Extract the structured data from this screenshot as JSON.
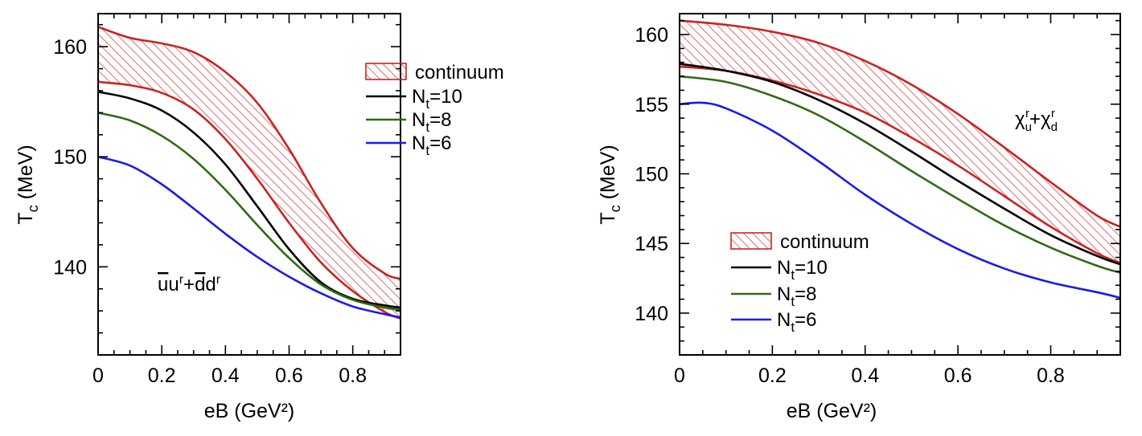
{
  "chart_data": [
    {
      "type": "line",
      "id": "left",
      "xlabel": "eB (GeV²)",
      "ylabel": "T_c (MeV)",
      "ylabel_main": "T",
      "ylabel_sub": "c",
      "ylabel_unit": "(MeV)",
      "xlim": [
        0,
        0.95
      ],
      "ylim": [
        132,
        163
      ],
      "xticks": [
        0,
        0.2,
        0.4,
        0.6,
        0.8
      ],
      "xtick_labels": [
        "0",
        "0.2",
        "0.4",
        "0.6",
        "0.8"
      ],
      "yticks": [
        140,
        150,
        160
      ],
      "ytick_labels": [
        "140",
        "150",
        "160"
      ],
      "annotation": "ūu^r + d̄d^r",
      "annotation_parts": {
        "bar1": "u",
        "mid1": "u",
        "sup1": "r",
        "plus": "+",
        "bar2": "d",
        "mid2": "d",
        "sup2": "r"
      },
      "band": {
        "name": "continuum",
        "color": "#cc2222",
        "x": [
          0,
          0.1,
          0.2,
          0.3,
          0.4,
          0.5,
          0.6,
          0.7,
          0.8,
          0.9,
          0.95
        ],
        "upper": [
          161.8,
          160.8,
          160.3,
          159.5,
          157.7,
          154.9,
          150.7,
          145.8,
          141.7,
          139.4,
          138.9
        ],
        "lower": [
          156.8,
          156.5,
          155.8,
          154.3,
          151.6,
          148.0,
          144.0,
          140.4,
          137.8,
          135.9,
          135.3
        ]
      },
      "series": [
        {
          "name": "N_t=10",
          "label_main": "N",
          "label_sub": "t",
          "label_tail": "=10",
          "color": "#000000",
          "x": [
            0,
            0.1,
            0.2,
            0.3,
            0.4,
            0.5,
            0.6,
            0.7,
            0.8,
            0.9,
            0.95
          ],
          "y": [
            155.9,
            155.3,
            154.2,
            152.2,
            149.3,
            145.5,
            141.6,
            138.6,
            137.1,
            136.5,
            136.3
          ]
        },
        {
          "name": "N_t=8",
          "label_main": "N",
          "label_sub": "t",
          "label_tail": "=8",
          "color": "#2e6b12",
          "x": [
            0,
            0.1,
            0.2,
            0.3,
            0.4,
            0.5,
            0.6,
            0.7,
            0.8,
            0.9,
            0.95
          ],
          "y": [
            154.0,
            153.3,
            151.9,
            149.8,
            147.0,
            143.8,
            140.8,
            138.4,
            137.0,
            136.3,
            136.1
          ]
        },
        {
          "name": "N_t=6",
          "label_main": "N",
          "label_sub": "t",
          "label_tail": "=6",
          "color": "#1a1aee",
          "x": [
            0,
            0.1,
            0.2,
            0.3,
            0.4,
            0.5,
            0.6,
            0.7,
            0.8,
            0.9,
            0.95
          ],
          "y": [
            150.0,
            149.2,
            147.5,
            145.3,
            143.0,
            140.9,
            139.1,
            137.6,
            136.4,
            135.7,
            135.4
          ]
        }
      ],
      "legend_position": "top-right",
      "legend_entries": [
        "continuum",
        "N_t=10",
        "N_t=8",
        "N_t=6"
      ]
    },
    {
      "type": "line",
      "id": "right",
      "xlabel": "eB (GeV²)",
      "ylabel": "T_c (MeV)",
      "ylabel_main": "T",
      "ylabel_sub": "c",
      "ylabel_unit": "(MeV)",
      "xlim": [
        0,
        0.95
      ],
      "ylim": [
        137,
        161.5
      ],
      "xticks": [
        0,
        0.2,
        0.4,
        0.6,
        0.8
      ],
      "xtick_labels": [
        "0",
        "0.2",
        "0.4",
        "0.6",
        "0.8"
      ],
      "yticks": [
        140,
        145,
        150,
        155,
        160
      ],
      "ytick_labels": [
        "140",
        "145",
        "150",
        "155",
        "160"
      ],
      "annotation": "χ_u^r + χ_d^r",
      "annotation_parts": {
        "chi1": "χ",
        "sub1": "u",
        "sup1": "r",
        "plus": "+",
        "chi2": "χ",
        "sub2": "d",
        "sup2": "r"
      },
      "band": {
        "name": "continuum",
        "color": "#cc2222",
        "x": [
          0,
          0.1,
          0.2,
          0.3,
          0.4,
          0.5,
          0.6,
          0.7,
          0.8,
          0.9,
          0.95
        ],
        "upper": [
          161.0,
          160.7,
          160.2,
          159.4,
          158.1,
          156.4,
          154.3,
          151.9,
          149.4,
          147.0,
          146.2
        ],
        "lower": [
          157.7,
          157.4,
          156.7,
          155.7,
          154.4,
          152.6,
          150.6,
          148.4,
          146.2,
          144.3,
          143.6
        ]
      },
      "series": [
        {
          "name": "N_t=10",
          "label_main": "N",
          "label_sub": "t",
          "label_tail": "=10",
          "color": "#000000",
          "x": [
            0,
            0.1,
            0.2,
            0.3,
            0.4,
            0.5,
            0.6,
            0.7,
            0.8,
            0.9,
            0.95
          ],
          "y": [
            157.9,
            157.4,
            156.6,
            155.3,
            153.6,
            151.6,
            149.5,
            147.5,
            145.6,
            144.1,
            143.5
          ]
        },
        {
          "name": "N_t=8",
          "label_main": "N",
          "label_sub": "t",
          "label_tail": "=8",
          "color": "#2e6b12",
          "x": [
            0,
            0.1,
            0.2,
            0.3,
            0.4,
            0.5,
            0.6,
            0.7,
            0.8,
            0.9,
            0.95
          ],
          "y": [
            157.0,
            156.6,
            155.6,
            154.2,
            152.3,
            150.2,
            148.2,
            146.3,
            144.7,
            143.4,
            142.9
          ]
        },
        {
          "name": "N_t=6",
          "label_main": "N",
          "label_sub": "t",
          "label_tail": "=6",
          "color": "#1a1aee",
          "x": [
            0,
            0.05,
            0.1,
            0.2,
            0.3,
            0.4,
            0.5,
            0.6,
            0.7,
            0.8,
            0.9,
            0.95
          ],
          "y": [
            155.0,
            155.1,
            154.7,
            153.1,
            150.9,
            148.5,
            146.4,
            144.6,
            143.2,
            142.2,
            141.5,
            141.1
          ]
        }
      ],
      "legend_position": "bottom-left",
      "legend_entries": [
        "continuum",
        "N_t=10",
        "N_t=8",
        "N_t=6"
      ]
    }
  ]
}
